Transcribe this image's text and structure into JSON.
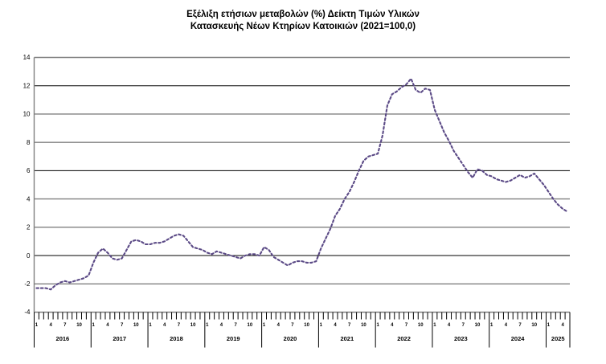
{
  "chart_data": {
    "type": "line",
    "title": "Εξέλιξη ετήσιων μεταβολών (%) Δείκτη Τιμών Υλικών",
    "subtitle": "Κατασκευής Νέων Κτηρίων Κατοικιών (2021=100,0)",
    "ylim": [
      -4,
      14
    ],
    "ytick_step": 2,
    "y_ticks": [
      -4,
      -2,
      0,
      2,
      4,
      6,
      8,
      10,
      12,
      14
    ],
    "emphasized_gridlines": [
      0,
      6,
      12
    ],
    "grid": true,
    "legend": "none",
    "x_start": "2016-01",
    "x_end": "2025-05",
    "years": [
      {
        "label": "2016",
        "months": 12
      },
      {
        "label": "2017",
        "months": 12
      },
      {
        "label": "2018",
        "months": 12
      },
      {
        "label": "2019",
        "months": 12
      },
      {
        "label": "2020",
        "months": 12
      },
      {
        "label": "2021",
        "months": 12
      },
      {
        "label": "2022",
        "months": 12
      },
      {
        "label": "2023",
        "months": 12
      },
      {
        "label": "2024",
        "months": 12
      },
      {
        "label": "2025",
        "months": 5
      }
    ],
    "month_tick_labels": [
      "1",
      "4",
      "7",
      "10"
    ],
    "month_label_positions": [
      0,
      3,
      6,
      9
    ],
    "colors": {
      "line": "#5B4A86",
      "gridline": "#808080",
      "gridline_dark": "#000000",
      "text": "#000000"
    },
    "series": [
      {
        "values": [
          -2.3,
          -2.3,
          -2.3,
          -2.4,
          -2.1,
          -1.9,
          -1.8,
          -1.9,
          -1.8,
          -1.7,
          -1.6,
          -1.4,
          -0.5,
          0.2,
          0.5,
          0.2,
          -0.2,
          -0.3,
          -0.2,
          0.4,
          1.0,
          1.1,
          1.0,
          0.8,
          0.8,
          0.9,
          0.9,
          1.0,
          1.2,
          1.4,
          1.5,
          1.4,
          1.0,
          0.6,
          0.5,
          0.4,
          0.2,
          0.1,
          0.3,
          0.2,
          0.1,
          0.0,
          -0.1,
          -0.2,
          0.0,
          0.1,
          0.1,
          0.0,
          0.6,
          0.4,
          -0.1,
          -0.3,
          -0.5,
          -0.7,
          -0.5,
          -0.4,
          -0.4,
          -0.5,
          -0.5,
          -0.4,
          0.5,
          1.2,
          1.9,
          2.8,
          3.3,
          4.0,
          4.5,
          5.2,
          6.0,
          6.7,
          7.0,
          7.1,
          7.2,
          8.5,
          10.6,
          11.4,
          11.6,
          11.9,
          12.1,
          12.5,
          11.7,
          11.5,
          11.8,
          11.7,
          10.3,
          9.5,
          8.7,
          8.1,
          7.4,
          6.9,
          6.4,
          5.9,
          5.5,
          6.1,
          6.0,
          5.7,
          5.6,
          5.4,
          5.3,
          5.2,
          5.3,
          5.5,
          5.7,
          5.5,
          5.6,
          5.8,
          5.4,
          5.0,
          4.5,
          4.0,
          3.6,
          3.3,
          3.1
        ]
      }
    ]
  }
}
